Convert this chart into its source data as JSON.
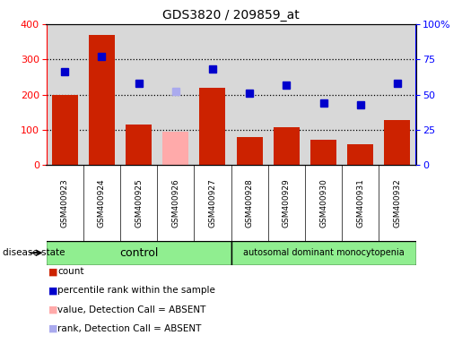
{
  "title": "GDS3820 / 209859_at",
  "samples": [
    "GSM400923",
    "GSM400924",
    "GSM400925",
    "GSM400926",
    "GSM400927",
    "GSM400928",
    "GSM400929",
    "GSM400930",
    "GSM400931",
    "GSM400932"
  ],
  "bar_values": [
    200,
    370,
    115,
    95,
    220,
    80,
    108,
    73,
    60,
    128
  ],
  "bar_colors": [
    "#cc2200",
    "#cc2200",
    "#cc2200",
    "#ffaaaa",
    "#cc2200",
    "#cc2200",
    "#cc2200",
    "#cc2200",
    "#cc2200",
    "#cc2200"
  ],
  "rank_pct": [
    66,
    77,
    58,
    52,
    68,
    51,
    57,
    44,
    43,
    58
  ],
  "rank_colors": [
    "#0000cc",
    "#0000cc",
    "#0000cc",
    "#aaaaee",
    "#0000cc",
    "#0000cc",
    "#0000cc",
    "#0000cc",
    "#0000cc",
    "#0000cc"
  ],
  "left_ylim": [
    0,
    400
  ],
  "left_yticks": [
    0,
    100,
    200,
    300,
    400
  ],
  "right_ylim": [
    0,
    100
  ],
  "right_yticks": [
    0,
    25,
    50,
    75,
    100
  ],
  "right_yticklabels": [
    "0",
    "25",
    "50",
    "75",
    "100%"
  ],
  "control_label": "control",
  "disease_label": "autosomal dominant monocytopenia",
  "disease_state_label": "disease state",
  "legend_items": [
    {
      "label": "count",
      "color": "#cc2200"
    },
    {
      "label": "percentile rank within the sample",
      "color": "#0000cc"
    },
    {
      "label": "value, Detection Call = ABSENT",
      "color": "#ffaaaa"
    },
    {
      "label": "rank, Detection Call = ABSENT",
      "color": "#aaaaee"
    }
  ],
  "bar_width": 0.7,
  "marker_size": 6,
  "background_color": "#ffffff",
  "plot_bg_color": "#d8d8d8",
  "green_color": "#90ee90",
  "grid_lines": [
    100,
    200,
    300
  ]
}
